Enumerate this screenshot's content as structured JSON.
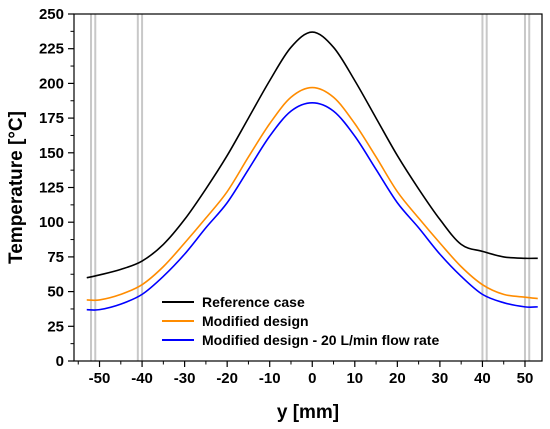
{
  "chart_data": {
    "type": "line",
    "title": "",
    "xlabel": "y [mm]",
    "ylabel": "Temperature [°C]",
    "xlim": [
      -56,
      54
    ],
    "ylim": [
      0,
      250
    ],
    "x_ticks": [
      -50,
      -40,
      -30,
      -20,
      -10,
      0,
      10,
      20,
      30,
      40,
      50
    ],
    "y_ticks": [
      0,
      25,
      50,
      75,
      100,
      125,
      150,
      175,
      200,
      225,
      250
    ],
    "grid": false,
    "legend_position": "bottom-center",
    "reference_lines_x": [
      -52,
      -51,
      -41,
      -40,
      40,
      41,
      50,
      51
    ],
    "reference_line_color": "#c8c8c8",
    "series": [
      {
        "name": "Reference case",
        "color": "#000000",
        "x": [
          -53,
          -50,
          -45,
          -40,
          -35,
          -30,
          -25,
          -20,
          -15,
          -10,
          -5,
          0,
          5,
          10,
          15,
          20,
          25,
          30,
          35,
          40,
          45,
          50,
          53
        ],
        "values": [
          60,
          62,
          66,
          72,
          84,
          102,
          124,
          148,
          175,
          202,
          226,
          237,
          226,
          202,
          175,
          148,
          124,
          102,
          84,
          79,
          75,
          74,
          74
        ]
      },
      {
        "name": "Modified design",
        "color": "#ff8c00",
        "x": [
          -53,
          -50,
          -45,
          -40,
          -35,
          -30,
          -25,
          -20,
          -15,
          -10,
          -5,
          0,
          5,
          10,
          15,
          20,
          25,
          30,
          35,
          40,
          45,
          50,
          53
        ],
        "values": [
          44,
          44,
          48,
          55,
          68,
          85,
          103,
          122,
          147,
          171,
          190,
          197,
          190,
          171,
          147,
          122,
          103,
          85,
          68,
          55,
          48,
          46,
          45
        ]
      },
      {
        "name": "Modified design - 20 L/min flow rate",
        "color": "#0000ff",
        "x": [
          -53,
          -50,
          -45,
          -40,
          -35,
          -30,
          -25,
          -20,
          -15,
          -10,
          -5,
          0,
          5,
          10,
          15,
          20,
          25,
          30,
          35,
          40,
          45,
          50,
          53
        ],
        "values": [
          37,
          37,
          41,
          48,
          61,
          77,
          96,
          114,
          138,
          162,
          180,
          186,
          180,
          162,
          138,
          114,
          96,
          77,
          61,
          48,
          42,
          39,
          39
        ]
      }
    ]
  }
}
